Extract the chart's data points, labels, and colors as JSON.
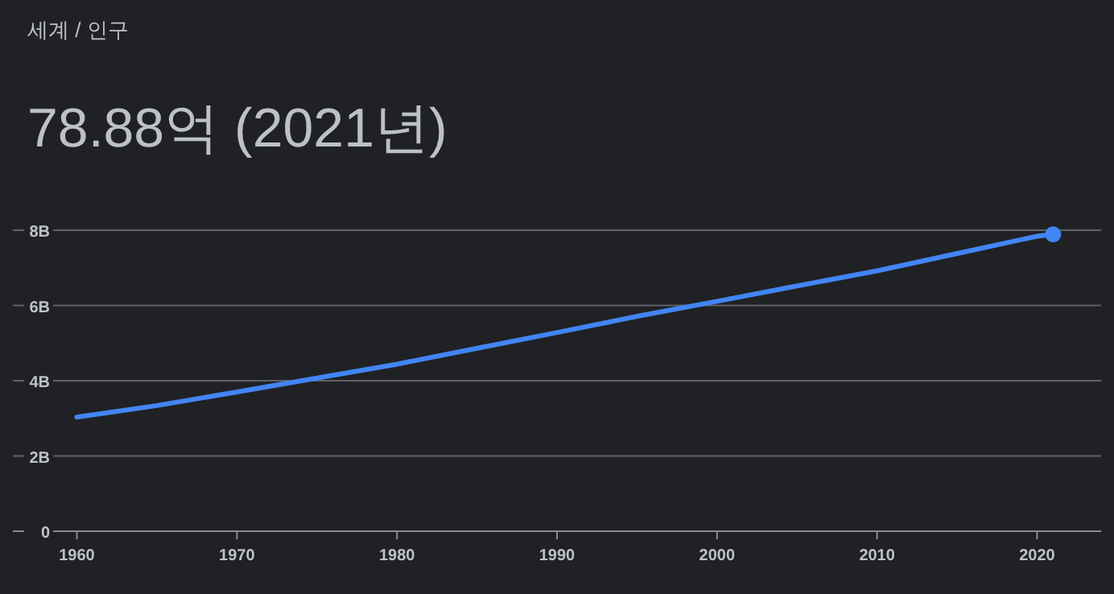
{
  "chart_data": {
    "type": "line",
    "title": "78.88억 (2021년)",
    "subtitle": "세계 / 인구",
    "xlim": [
      1956,
      2024
    ],
    "xticks": [
      1960,
      1970,
      1980,
      1990,
      2000,
      2010,
      2020
    ],
    "ylim": [
      0,
      8
    ],
    "yticks": [
      0,
      {
        "value": 2,
        "label": "2B"
      },
      {
        "value": 4,
        "label": "4B"
      },
      {
        "value": 6,
        "label": "6B"
      },
      {
        "value": 8,
        "label": "8B"
      }
    ],
    "grid": "y",
    "series": [
      {
        "color": "#4285f4",
        "x": [
          1960,
          1965,
          1970,
          1975,
          1980,
          1985,
          1990,
          1995,
          2000,
          2005,
          2010,
          2015,
          2020,
          2021
        ],
        "values": [
          3.03,
          3.34,
          3.7,
          4.07,
          4.44,
          4.86,
          5.28,
          5.71,
          6.11,
          6.52,
          6.92,
          7.38,
          7.84,
          7.89
        ]
      },
      {
        "type": "scatter",
        "color": "#4285f4",
        "marker": "circle",
        "x": [
          2021
        ],
        "values": [
          7.89
        ]
      }
    ]
  }
}
